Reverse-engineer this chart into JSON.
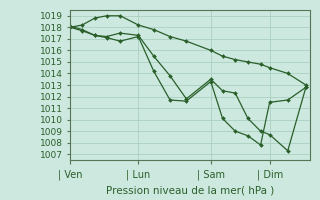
{
  "background_color": "#cce8df",
  "grid_color": "#aacfbf",
  "line_color": "#2a5f2a",
  "marker_color": "#2a5f2a",
  "xlabel": "Pression niveau de la mer( hPa )",
  "xtick_labels": [
    "| Ven",
    "| Lun",
    "| Sam",
    "| Dim"
  ],
  "ylim": [
    1006.5,
    1019.5
  ],
  "xlim": [
    0,
    265
  ],
  "xtick_positions": [
    0,
    75,
    155,
    220
  ],
  "ytick_labels": [
    1007,
    1008,
    1009,
    1010,
    1011,
    1012,
    1013,
    1014,
    1015,
    1016,
    1017,
    1018,
    1019
  ],
  "lines": [
    {
      "x": [
        0,
        13,
        27,
        40,
        55,
        75,
        92,
        110,
        128,
        155,
        168,
        182,
        196,
        210,
        220,
        240,
        260
      ],
      "y": [
        1018.0,
        1018.2,
        1018.8,
        1019.0,
        1019.0,
        1018.2,
        1017.8,
        1017.2,
        1016.8,
        1016.0,
        1015.5,
        1015.2,
        1015.0,
        1014.8,
        1014.5,
        1014.0,
        1013.0
      ]
    },
    {
      "x": [
        0,
        13,
        27,
        40,
        55,
        75,
        92,
        110,
        128,
        155,
        168,
        182,
        196,
        210,
        220,
        240,
        260
      ],
      "y": [
        1018.1,
        1017.8,
        1017.3,
        1017.2,
        1017.5,
        1017.3,
        1015.5,
        1013.8,
        1011.8,
        1013.5,
        1012.5,
        1012.3,
        1010.1,
        1009.0,
        1008.7,
        1007.3,
        1012.8
      ]
    },
    {
      "x": [
        0,
        13,
        27,
        40,
        55,
        75,
        92,
        110,
        128,
        155,
        168,
        182,
        196,
        210,
        220,
        240,
        260
      ],
      "y": [
        1018.0,
        1017.7,
        1017.3,
        1017.1,
        1016.8,
        1017.2,
        1014.2,
        1011.7,
        1011.6,
        1013.3,
        1010.1,
        1009.0,
        1008.6,
        1007.8,
        1011.5,
        1011.7,
        1012.8
      ]
    }
  ]
}
